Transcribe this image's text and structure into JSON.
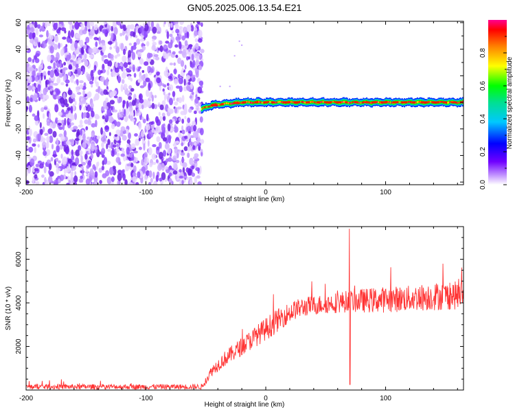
{
  "title": "GN05.2025.006.13.54.E21",
  "chart_data": [
    {
      "type": "heatmap",
      "xlabel": "Height of straight line (km)",
      "ylabel": "Frequency (Hz)",
      "xlim": [
        -200,
        165
      ],
      "ylim": [
        -62,
        61
      ],
      "x_ticks": [
        -200,
        -100,
        0,
        100
      ],
      "x_tick_labels": [
        "-200",
        "-100",
        "0",
        "100"
      ],
      "y_ticks": [
        -60,
        -40,
        -20,
        0,
        20,
        40,
        60
      ],
      "y_tick_labels": [
        "-60",
        "-40",
        "-20",
        "0",
        "20",
        "40",
        "60"
      ],
      "noise_region_x": [
        -200,
        -53
      ],
      "signal_band": {
        "x_start": -54,
        "x_end": 165,
        "frequency_center": [
          [
            -54,
            -5
          ],
          [
            -45,
            -2
          ],
          [
            -20,
            0
          ],
          [
            0,
            0
          ],
          [
            50,
            0
          ],
          [
            100,
            0
          ],
          [
            165,
            0
          ]
        ],
        "half_width_hz": 3
      },
      "colorbar": {
        "label": "Normalized spectral amplitude",
        "range": [
          0,
          1
        ],
        "ticks": [
          0,
          0.2,
          0.4,
          0.6,
          0.8
        ],
        "tick_labels": [
          "0.0",
          "0.2",
          "0.4",
          "0.6",
          "0.8"
        ]
      },
      "grid": false,
      "legend": "none"
    },
    {
      "type": "line",
      "xlabel": "Height of straight line (km)",
      "ylabel": "SNR (10 * v/v)",
      "xlim": [
        -200,
        165
      ],
      "ylim": [
        0,
        7500
      ],
      "x_ticks": [
        -200,
        -100,
        0,
        100
      ],
      "x_tick_labels": [
        "-200",
        "-100",
        "0",
        "100"
      ],
      "y_ticks": [
        2000,
        4000,
        6000
      ],
      "y_tick_labels": [
        "2000",
        "4000",
        "6000"
      ],
      "color": "#ff3333",
      "envelope_x": [
        -200,
        -53,
        -45,
        -35,
        -25,
        -15,
        -5,
        5,
        15,
        25,
        35,
        50,
        65,
        80,
        100,
        120,
        140,
        165
      ],
      "envelope_y": [
        150,
        150,
        900,
        1400,
        1800,
        2200,
        2600,
        3000,
        3400,
        3700,
        3850,
        3950,
        4050,
        4100,
        4150,
        4200,
        4300,
        4350
      ],
      "noise_amplitude": [
        120,
        120,
        250,
        350,
        400,
        450,
        500,
        550,
        500,
        450,
        450,
        450,
        500,
        550,
        600,
        600,
        650,
        650
      ],
      "spike": {
        "x": 70,
        "max": 7400,
        "min": 250
      },
      "grid": false,
      "legend": "none"
    }
  ]
}
